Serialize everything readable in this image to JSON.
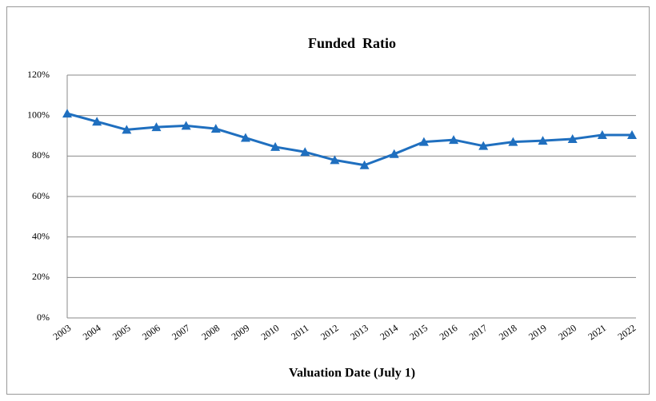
{
  "chart_data": {
    "type": "line",
    "title": "Funded  Ratio",
    "x_label": "Valuation Date (July 1)",
    "categories": [
      "2003",
      "2004",
      "2005",
      "2006",
      "2007",
      "2008",
      "2009",
      "2010",
      "2011",
      "2012",
      "2013",
      "2014",
      "2015",
      "2016",
      "2017",
      "2018",
      "2019",
      "2020",
      "2021",
      "2022"
    ],
    "series": [
      {
        "name": "Funded Ratio",
        "color": "#1f6fbf",
        "values": [
          101,
          97,
          93,
          94.3,
          95,
          93.5,
          89,
          84.5,
          82,
          78,
          75.5,
          81,
          87,
          88,
          85,
          87,
          87.6,
          88.4,
          90.4,
          90.4
        ]
      }
    ],
    "ylim": [
      0,
      120
    ],
    "yticks": [
      {
        "value": 0,
        "label": "0%"
      },
      {
        "value": 20,
        "label": "20%"
      },
      {
        "value": 40,
        "label": "40%"
      },
      {
        "value": 60,
        "label": "60%"
      },
      {
        "value": 80,
        "label": "80%"
      },
      {
        "value": 100,
        "label": "100%"
      },
      {
        "value": 120,
        "label": "120%"
      }
    ],
    "grid": true
  }
}
